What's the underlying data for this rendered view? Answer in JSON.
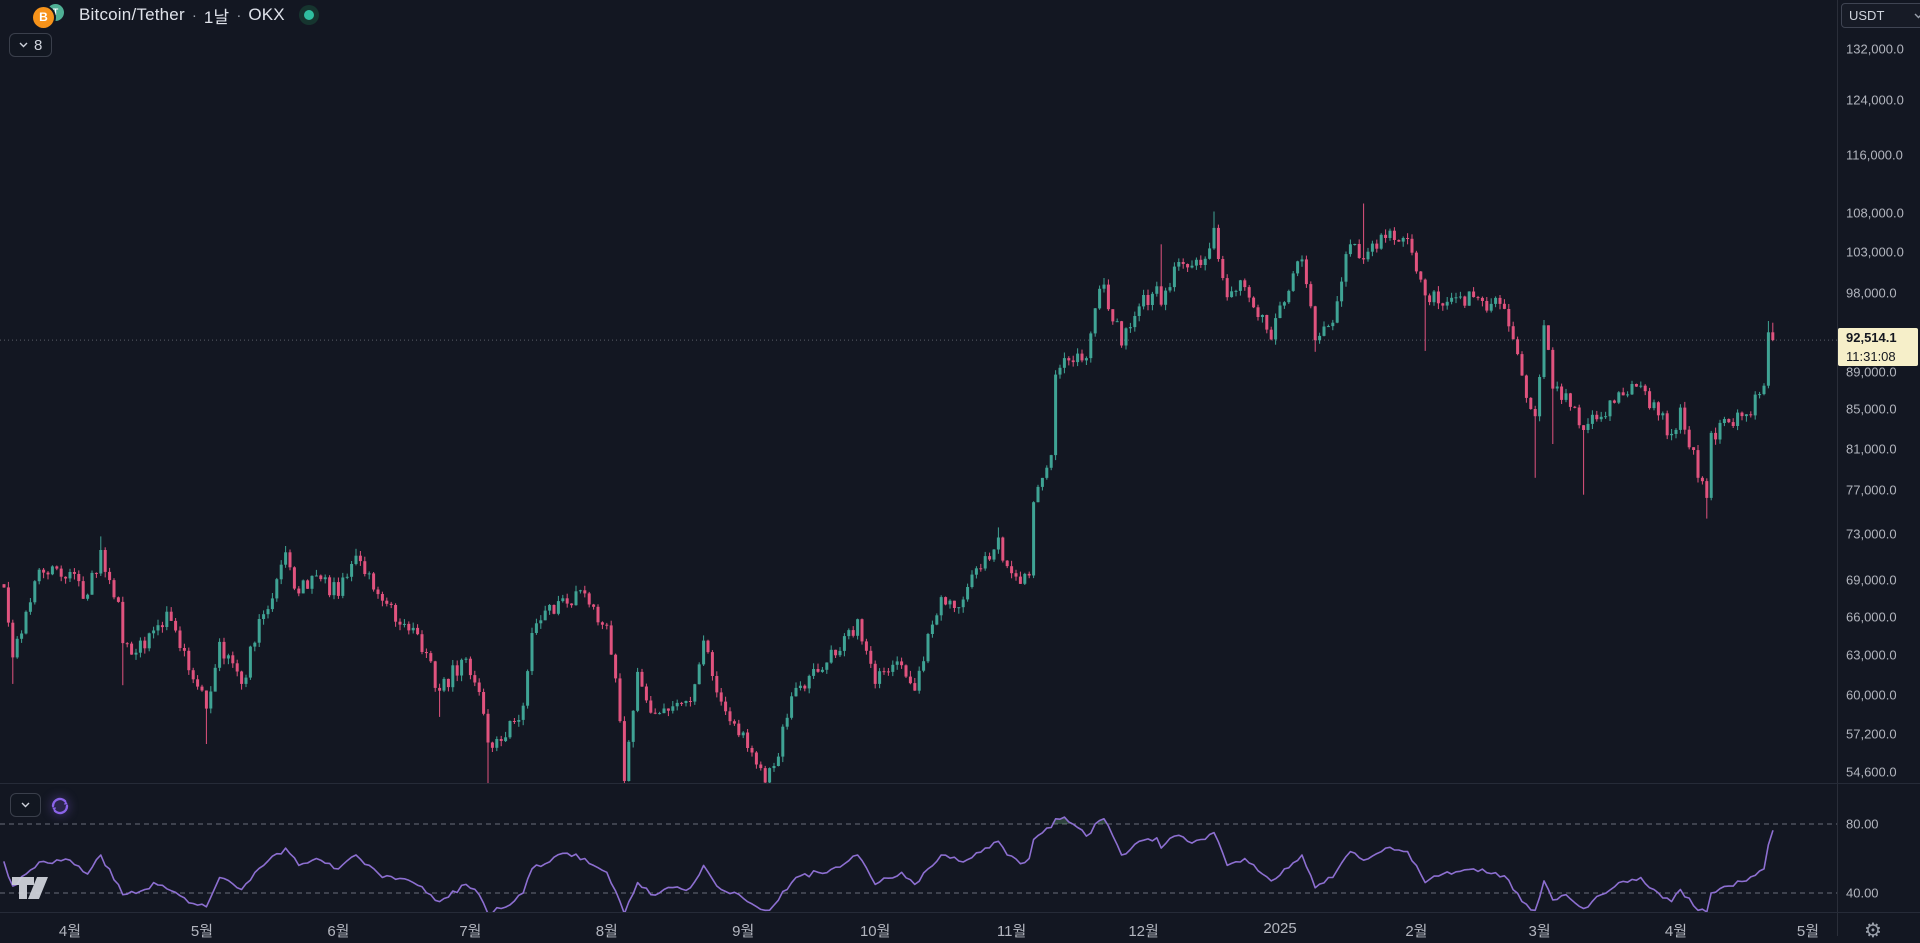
{
  "header": {
    "base": "Bitcoin",
    "pair_separator": "/",
    "quote": "Tether",
    "dot": "·",
    "interval": "1날",
    "exchange": "OKX",
    "collapse_count": "8",
    "base_symbol": "B",
    "quote_symbol": "T",
    "status_color": "#2fbfa0"
  },
  "toolbar": {
    "currency_button": "USDT"
  },
  "price_scale": {
    "ticks": [
      "132,000.0",
      "124,000.0",
      "116,000.0",
      "108,000.0",
      "103,000.0",
      "98,000.0",
      "89,000.0",
      "85,000.0",
      "81,000.0",
      "77,000.0",
      "73,000.0",
      "69,000.0",
      "66,000.0",
      "63,000.0",
      "60,000.0",
      "57,200.0",
      "54,600.0"
    ],
    "last_price_label": "92,514.1",
    "countdown": "11:31:08"
  },
  "rsi_scale": {
    "ticks": [
      "80.00",
      "40.00"
    ]
  },
  "time_scale": {
    "labels": [
      {
        "text": "4월",
        "day": 15
      },
      {
        "text": "5월",
        "day": 45
      },
      {
        "text": "6월",
        "day": 76
      },
      {
        "text": "7월",
        "day": 106
      },
      {
        "text": "8월",
        "day": 137
      },
      {
        "text": "9월",
        "day": 168
      },
      {
        "text": "10월",
        "day": 198
      },
      {
        "text": "11월",
        "day": 229
      },
      {
        "text": "12월",
        "day": 259
      },
      {
        "text": "2025",
        "day": 290
      },
      {
        "text": "2월",
        "day": 321
      },
      {
        "text": "3월",
        "day": 349
      },
      {
        "text": "4월",
        "day": 380
      },
      {
        "text": "5월",
        "day": 410
      }
    ]
  },
  "chart_data": {
    "type": "candlestick",
    "title": "Bitcoin/Tether · 1날 · OKX",
    "symbol": "BTC/USDT",
    "exchange": "OKX",
    "interval": "1D",
    "price_scale_type": "log",
    "visible_price_range": [
      53000,
      136000
    ],
    "time_range": [
      "2024-03-17",
      "2025-04-23"
    ],
    "last_price": 92514.1,
    "countdown": "11:31:08",
    "up_color": "#3fa394",
    "down_color": "#e0537e",
    "price_anchors_format": "[dayIndexFrom2024-03-17, close, lowWick|null, highWick|null] (USDT)",
    "price_anchors": [
      [
        0,
        68400,
        null,
        null
      ],
      [
        2,
        62800,
        60800,
        null
      ],
      [
        8,
        69900,
        null,
        null
      ],
      [
        10,
        69500,
        null,
        null
      ],
      [
        15,
        69700,
        null,
        null
      ],
      [
        19,
        67800,
        null,
        null
      ],
      [
        22,
        71600,
        null,
        72800
      ],
      [
        26,
        67200,
        null,
        null
      ],
      [
        27,
        63900,
        60700,
        null
      ],
      [
        32,
        63500,
        null,
        null
      ],
      [
        34,
        64900,
        null,
        null
      ],
      [
        37,
        66400,
        null,
        null
      ],
      [
        44,
        60600,
        null,
        null
      ],
      [
        46,
        59000,
        56500,
        null
      ],
      [
        49,
        64000,
        null,
        null
      ],
      [
        54,
        60800,
        null,
        null
      ],
      [
        59,
        66200,
        null,
        null
      ],
      [
        64,
        71400,
        null,
        71950
      ],
      [
        65,
        70100,
        null,
        null
      ],
      [
        67,
        67900,
        null,
        null
      ],
      [
        71,
        69400,
        null,
        null
      ],
      [
        76,
        67700,
        null,
        null
      ],
      [
        80,
        71100,
        null,
        71700
      ],
      [
        86,
        67300,
        null,
        null
      ],
      [
        89,
        65600,
        null,
        null
      ],
      [
        93,
        65100,
        null,
        null
      ],
      [
        99,
        60300,
        58400,
        null
      ],
      [
        105,
        62700,
        null,
        null
      ],
      [
        108,
        60200,
        null,
        null
      ],
      [
        110,
        56600,
        53500,
        null
      ],
      [
        113,
        56700,
        null,
        null
      ],
      [
        118,
        59200,
        null,
        null
      ],
      [
        120,
        64700,
        null,
        null
      ],
      [
        127,
        67500,
        null,
        null
      ],
      [
        132,
        67900,
        null,
        null
      ],
      [
        134,
        66800,
        null,
        null
      ],
      [
        137,
        65300,
        null,
        null
      ],
      [
        140,
        58100,
        null,
        null
      ],
      [
        141,
        54000,
        53300,
        null
      ],
      [
        144,
        61700,
        null,
        null
      ],
      [
        147,
        58700,
        null,
        null
      ],
      [
        150,
        59000,
        null,
        null
      ],
      [
        156,
        59500,
        null,
        null
      ],
      [
        159,
        64100,
        null,
        null
      ],
      [
        163,
        59500,
        null,
        null
      ],
      [
        168,
        57300,
        null,
        null
      ],
      [
        173,
        53900,
        52800,
        null
      ],
      [
        175,
        55000,
        null,
        null
      ],
      [
        180,
        60500,
        null,
        null
      ],
      [
        185,
        61700,
        null,
        null
      ],
      [
        190,
        63300,
        null,
        null
      ],
      [
        194,
        65800,
        null,
        null
      ],
      [
        198,
        60800,
        null,
        null
      ],
      [
        204,
        62200,
        null,
        null
      ],
      [
        207,
        60300,
        null,
        null
      ],
      [
        213,
        67600,
        null,
        null
      ],
      [
        218,
        67400,
        null,
        null
      ],
      [
        226,
        72700,
        null,
        73600
      ],
      [
        228,
        70200,
        null,
        null
      ],
      [
        231,
        68700,
        null,
        null
      ],
      [
        233,
        69400,
        null,
        null
      ],
      [
        234,
        75900,
        null,
        null
      ],
      [
        238,
        80400,
        null,
        null
      ],
      [
        239,
        88700,
        null,
        null
      ],
      [
        241,
        90500,
        null,
        null
      ],
      [
        244,
        91000,
        null,
        null
      ],
      [
        246,
        90500,
        null,
        null
      ],
      [
        249,
        98500,
        null,
        null
      ],
      [
        250,
        99000,
        null,
        99800
      ],
      [
        254,
        91900,
        null,
        null
      ],
      [
        258,
        96400,
        null,
        null
      ],
      [
        262,
        98800,
        null,
        null
      ],
      [
        263,
        96600,
        null,
        104000
      ],
      [
        266,
        101200,
        null,
        null
      ],
      [
        269,
        101100,
        null,
        null
      ],
      [
        272,
        101400,
        null,
        null
      ],
      [
        275,
        106100,
        null,
        108250
      ],
      [
        278,
        97500,
        null,
        null
      ],
      [
        282,
        98700,
        null,
        null
      ],
      [
        288,
        92600,
        null,
        null
      ],
      [
        291,
        96900,
        null,
        null
      ],
      [
        295,
        102100,
        null,
        null
      ],
      [
        298,
        92500,
        91200,
        null
      ],
      [
        302,
        94500,
        null,
        null
      ],
      [
        306,
        104000,
        null,
        null
      ],
      [
        309,
        102100,
        null,
        109300
      ],
      [
        314,
        104800,
        null,
        null
      ],
      [
        319,
        104700,
        null,
        null
      ],
      [
        321,
        100600,
        null,
        null
      ],
      [
        323,
        97700,
        91300,
        null
      ],
      [
        327,
        96500,
        null,
        null
      ],
      [
        334,
        97500,
        null,
        null
      ],
      [
        341,
        96100,
        null,
        null
      ],
      [
        345,
        88600,
        null,
        null
      ],
      [
        348,
        84300,
        78200,
        null
      ],
      [
        350,
        94200,
        null,
        null
      ],
      [
        352,
        87200,
        81500,
        null
      ],
      [
        355,
        86700,
        null,
        null
      ],
      [
        359,
        82900,
        76600,
        null
      ],
      [
        362,
        84000,
        null,
        null
      ],
      [
        367,
        86800,
        null,
        null
      ],
      [
        372,
        87500,
        null,
        null
      ],
      [
        376,
        84400,
        null,
        null
      ],
      [
        379,
        82500,
        null,
        null
      ],
      [
        381,
        85200,
        null,
        null
      ],
      [
        385,
        78200,
        null,
        null
      ],
      [
        387,
        76300,
        74400,
        null
      ],
      [
        388,
        82600,
        null,
        null
      ],
      [
        392,
        83700,
        null,
        null
      ],
      [
        396,
        84500,
        null,
        null
      ],
      [
        400,
        87500,
        null,
        null
      ],
      [
        401,
        93400,
        null,
        94700
      ],
      [
        402,
        92514.1,
        null,
        94500
      ]
    ],
    "indicator": {
      "name": "RSI",
      "line_color": "#8d6fd1",
      "overbought_fill": "rgba(110,170,125,0.30)",
      "bands": [
        80,
        40
      ],
      "anchors_format": "[dayIndex, rsiValue]",
      "anchors": [
        [
          0,
          58
        ],
        [
          2,
          44
        ],
        [
          8,
          58
        ],
        [
          15,
          59
        ],
        [
          19,
          51
        ],
        [
          22,
          62
        ],
        [
          27,
          39
        ],
        [
          32,
          42
        ],
        [
          34,
          46
        ],
        [
          44,
          33
        ],
        [
          46,
          32
        ],
        [
          49,
          49
        ],
        [
          54,
          42
        ],
        [
          59,
          56
        ],
        [
          64,
          66
        ],
        [
          67,
          56
        ],
        [
          71,
          60
        ],
        [
          76,
          54
        ],
        [
          80,
          62
        ],
        [
          86,
          49
        ],
        [
          93,
          46
        ],
        [
          99,
          35
        ],
        [
          105,
          45
        ],
        [
          108,
          39
        ],
        [
          110,
          28
        ],
        [
          113,
          31
        ],
        [
          118,
          40
        ],
        [
          120,
          54
        ],
        [
          127,
          63
        ],
        [
          132,
          60
        ],
        [
          134,
          56
        ],
        [
          137,
          52
        ],
        [
          140,
          35
        ],
        [
          141,
          28
        ],
        [
          144,
          46
        ],
        [
          147,
          39
        ],
        [
          150,
          42
        ],
        [
          156,
          43
        ],
        [
          159,
          56
        ],
        [
          163,
          42
        ],
        [
          168,
          37
        ],
        [
          173,
          30
        ],
        [
          175,
          33
        ],
        [
          180,
          49
        ],
        [
          185,
          52
        ],
        [
          190,
          55
        ],
        [
          194,
          62
        ],
        [
          198,
          45
        ],
        [
          204,
          52
        ],
        [
          207,
          45
        ],
        [
          213,
          62
        ],
        [
          218,
          58
        ],
        [
          226,
          70
        ],
        [
          228,
          62
        ],
        [
          231,
          57
        ],
        [
          233,
          60
        ],
        [
          234,
          71
        ],
        [
          238,
          78
        ],
        [
          239,
          83
        ],
        [
          241,
          84
        ],
        [
          244,
          78
        ],
        [
          246,
          73
        ],
        [
          249,
          82
        ],
        [
          250,
          83
        ],
        [
          254,
          62
        ],
        [
          258,
          70
        ],
        [
          262,
          72
        ],
        [
          263,
          66
        ],
        [
          266,
          73
        ],
        [
          269,
          70
        ],
        [
          272,
          71
        ],
        [
          275,
          75
        ],
        [
          278,
          56
        ],
        [
          282,
          60
        ],
        [
          288,
          47
        ],
        [
          291,
          54
        ],
        [
          295,
          62
        ],
        [
          298,
          43
        ],
        [
          302,
          49
        ],
        [
          306,
          64
        ],
        [
          309,
          59
        ],
        [
          314,
          66
        ],
        [
          319,
          64
        ],
        [
          321,
          56
        ],
        [
          323,
          46
        ],
        [
          327,
          51
        ],
        [
          334,
          54
        ],
        [
          341,
          50
        ],
        [
          345,
          35
        ],
        [
          348,
          30
        ],
        [
          350,
          47
        ],
        [
          352,
          36
        ],
        [
          355,
          39
        ],
        [
          359,
          31
        ],
        [
          362,
          38
        ],
        [
          367,
          46
        ],
        [
          372,
          49
        ],
        [
          376,
          40
        ],
        [
          379,
          35
        ],
        [
          381,
          42
        ],
        [
          385,
          30
        ],
        [
          387,
          29
        ],
        [
          388,
          40
        ],
        [
          392,
          44
        ],
        [
          396,
          47
        ],
        [
          400,
          54
        ],
        [
          401,
          68
        ],
        [
          402,
          76
        ]
      ]
    }
  }
}
